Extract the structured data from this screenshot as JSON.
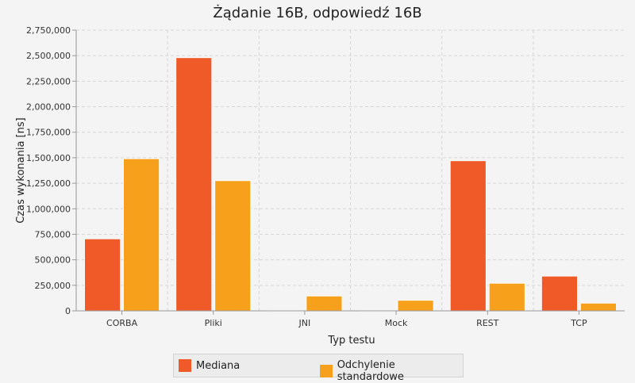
{
  "chart_data": {
    "type": "bar",
    "title": "Żądanie 16B, odpowiedź 16B",
    "xlabel": "Typ testu",
    "ylabel": "Czas wykonania [ns]",
    "categories": [
      "CORBA",
      "Pliki",
      "JNI",
      "Mock",
      "REST",
      "TCP"
    ],
    "series": [
      {
        "name": "Mediana",
        "color": "#f05a28",
        "values": [
          705000,
          2480000,
          3000,
          2000,
          1470000,
          340000
        ]
      },
      {
        "name": "Odchylenie standardowe",
        "color": "#f7a01b",
        "values": [
          1490000,
          1275000,
          145000,
          103000,
          270000,
          75000
        ]
      }
    ],
    "ylim": [
      0,
      2750000
    ],
    "yticks": [
      "0",
      "250,000",
      "500,000",
      "750,000",
      "1,000,000",
      "1,250,000",
      "1,500,000",
      "1,750,000",
      "2,000,000",
      "2,250,000",
      "2,500,000",
      "2,750,000"
    ],
    "grid": true,
    "legend_position": "bottom"
  }
}
